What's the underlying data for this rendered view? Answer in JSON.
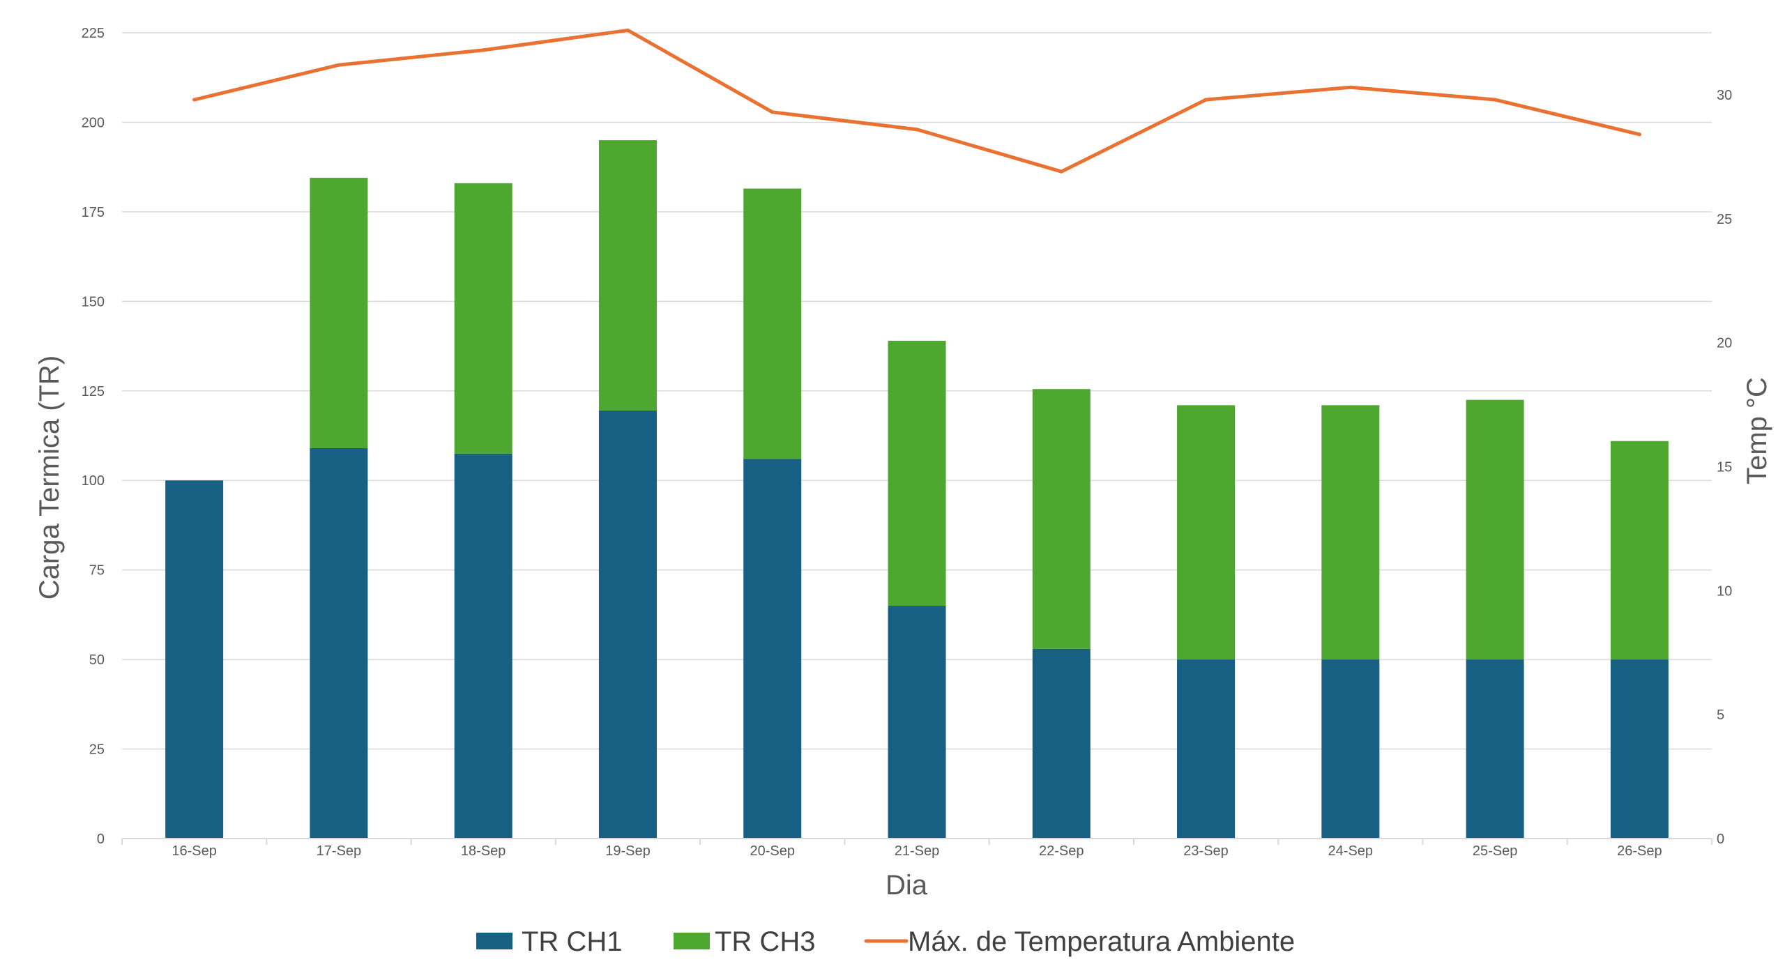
{
  "chart_data": {
    "type": "bar",
    "stacked": true,
    "categories": [
      "16-Sep",
      "17-Sep",
      "18-Sep",
      "19-Sep",
      "20-Sep",
      "21-Sep",
      "22-Sep",
      "23-Sep",
      "24-Sep",
      "25-Sep",
      "26-Sep"
    ],
    "series": [
      {
        "name": "TR CH1",
        "type": "bar",
        "axis": "left",
        "color": "#175F83",
        "values": [
          100,
          109,
          107.5,
          119.5,
          106,
          65,
          53,
          50,
          50,
          50,
          50
        ]
      },
      {
        "name": "TR CH3",
        "type": "bar",
        "axis": "left",
        "color": "#4EA72E",
        "values": [
          0,
          75.5,
          75.5,
          75.5,
          75.5,
          74,
          72.5,
          71,
          71,
          72.5,
          61
        ]
      },
      {
        "name": "Máx. de Temperatura Ambiente",
        "type": "line",
        "axis": "right",
        "color": "#E97132",
        "values": [
          29.8,
          31.2,
          31.8,
          32.6,
          29.3,
          28.6,
          26.9,
          29.8,
          30.3,
          29.8,
          28.4
        ]
      }
    ],
    "xlabel": "Dia",
    "ylabel": "Carga Termica (TR)",
    "y2label": "Temp °C",
    "ylim": [
      0,
      225
    ],
    "yticks": [
      0,
      25,
      50,
      75,
      100,
      125,
      150,
      175,
      200,
      225
    ],
    "y2lim": [
      0,
      32.5
    ],
    "y2ticks": [
      0,
      5,
      10,
      15,
      20,
      25,
      30
    ],
    "grid": true,
    "legend": "bottom"
  }
}
